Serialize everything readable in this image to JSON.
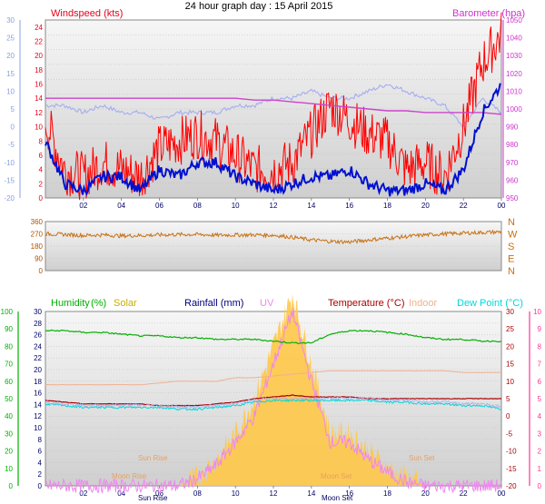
{
  "title": "24 hour graph day : 15 April 2015",
  "colors": {
    "wind_axis": "#e8001a",
    "wind_left_axis": "#8aa0e0",
    "baro_axis": "#cc33cc",
    "avg_wind": "#0010d0",
    "gust": "#ff0000",
    "baro_line": "#cc44cc",
    "baro_trace": "#a8b0f0",
    "wind_dir": "#c87012",
    "compass": "#c87012",
    "humidity": "#00b000",
    "solar": "#c8b000",
    "rainfall": "#000080",
    "uv": "#ee88ee",
    "temperature": "#aa0000",
    "indoor": "#f0b090",
    "dewpoint": "#00d8d8",
    "solar_fill": "#ffc848",
    "panel_bg_top": "#f4f4f4",
    "panel_bg_bottom": "#d0d0d0",
    "sun_label": "#e8a060",
    "moon_label": "#e8a060",
    "left_green_axis": "#00b000",
    "right_pink_axis": "#ff3399"
  },
  "time_labels": [
    "02",
    "04",
    "06",
    "08",
    "10",
    "12",
    "14",
    "16",
    "18",
    "20",
    "22",
    "00"
  ],
  "chart_data": [
    {
      "type": "line",
      "panel": "wind",
      "left_title": "Windspeed (kts)",
      "right_title": "Barometer (hpa)",
      "yaxis_kts": {
        "ticks": [
          0,
          2,
          4,
          6,
          8,
          10,
          12,
          14,
          16,
          18,
          20,
          22,
          24
        ],
        "range": [
          0,
          25
        ]
      },
      "yaxis_left_outer": {
        "ticks": [
          -20,
          -15,
          -10,
          -5,
          0,
          5,
          10,
          15,
          20,
          25,
          30
        ],
        "range": [
          -20,
          30
        ]
      },
      "yaxis_hpa": {
        "ticks": [
          950,
          960,
          970,
          980,
          990,
          1000,
          1010,
          1020,
          1030,
          1040,
          1050
        ],
        "range": [
          950,
          1050
        ]
      },
      "x_hours": [
        0,
        1,
        2,
        3,
        4,
        5,
        6,
        7,
        8,
        9,
        10,
        11,
        12,
        13,
        14,
        15,
        16,
        17,
        18,
        19,
        20,
        21,
        22,
        23,
        24
      ],
      "series": [
        {
          "key": "avg_wind",
          "values": [
            8,
            2,
            1,
            3,
            3,
            1,
            4,
            3,
            5,
            5,
            3,
            2,
            1,
            2,
            3,
            3,
            4,
            2,
            1,
            1,
            2,
            1,
            4,
            12,
            16
          ]
        },
        {
          "key": "gust",
          "values": [
            11,
            4,
            3,
            5,
            4,
            3,
            7,
            8,
            9,
            8,
            6,
            4,
            4,
            5,
            9,
            13,
            11,
            9,
            8,
            4,
            5,
            3,
            10,
            19,
            23
          ]
        },
        {
          "key": "baro_line",
          "values": [
            1006,
            1006,
            1006,
            1006,
            1006,
            1006,
            1006,
            1006,
            1006,
            1006,
            1006,
            1005,
            1005,
            1004,
            1003,
            1002,
            1001,
            1000,
            999,
            999,
            998,
            998,
            998,
            998,
            997
          ]
        },
        {
          "key": "baro_trace",
          "values": [
            13,
            13,
            12,
            13,
            12,
            12,
            11,
            12,
            12,
            12,
            13,
            13,
            14,
            14,
            15,
            14,
            14,
            15,
            16,
            15,
            14,
            13,
            10,
            14,
            12
          ]
        }
      ]
    },
    {
      "type": "line",
      "panel": "wind_direction",
      "yaxis": {
        "ticks": [
          0,
          90,
          180,
          270,
          360
        ],
        "range": [
          0,
          360
        ]
      },
      "compass": [
        "N",
        "W",
        "S",
        "E",
        "N"
      ],
      "x_hours": [
        0,
        1,
        2,
        3,
        4,
        5,
        6,
        7,
        8,
        9,
        10,
        11,
        12,
        13,
        14,
        15,
        16,
        17,
        18,
        19,
        20,
        21,
        22,
        23,
        24
      ],
      "series": [
        {
          "key": "wind_dir",
          "values": [
            270,
            265,
            258,
            262,
            255,
            258,
            262,
            265,
            265,
            260,
            262,
            262,
            260,
            245,
            225,
            215,
            210,
            225,
            238,
            250,
            262,
            270,
            275,
            280,
            285
          ]
        }
      ]
    },
    {
      "type": "line",
      "panel": "temperature",
      "headers": {
        "humidity": "Humidity",
        "humidity_unit": "(%)",
        "solar": "Solar",
        "rainfall": "Rainfall (mm)",
        "uv": "UV",
        "temperature": "Temperature (°C)",
        "indoor": "Indoor",
        "dewpoint": "Dew Point (°C)"
      },
      "yaxis_humidity": {
        "ticks": [
          0,
          10,
          20,
          30,
          40,
          50,
          60,
          70,
          80,
          90,
          100
        ],
        "range": [
          0,
          100
        ]
      },
      "yaxis_rain": {
        "ticks": [
          0,
          2,
          4,
          6,
          8,
          10,
          12,
          14,
          16,
          18,
          20,
          22,
          24,
          26,
          28,
          30
        ],
        "range": [
          0,
          30
        ]
      },
      "yaxis_temp": {
        "ticks": [
          -20,
          -15,
          -10,
          -5,
          0,
          5,
          10,
          15,
          20,
          25,
          30
        ],
        "range": [
          -20,
          30
        ]
      },
      "yaxis_uv": {
        "ticks": [
          0,
          1,
          2,
          3,
          4,
          5,
          6,
          7,
          8,
          9,
          10
        ],
        "range": [
          0,
          10
        ]
      },
      "x_hours": [
        0,
        1,
        2,
        3,
        4,
        5,
        6,
        7,
        8,
        9,
        10,
        11,
        12,
        13,
        14,
        15,
        16,
        17,
        18,
        19,
        20,
        21,
        22,
        23,
        24
      ],
      "series": [
        {
          "key": "humidity",
          "values": [
            89,
            89,
            88,
            88,
            87,
            86,
            86,
            85,
            85,
            84,
            84,
            84,
            83,
            82,
            82,
            87,
            89,
            89,
            88,
            87,
            85,
            84,
            84,
            83,
            83
          ]
        },
        {
          "key": "indoor",
          "values": [
            9,
            9,
            9,
            9,
            9,
            9,
            9.5,
            10,
            10,
            10,
            11,
            11,
            11.5,
            12,
            12.5,
            13,
            13,
            13,
            13,
            13,
            13,
            13,
            12.5,
            12.5,
            12.5
          ]
        },
        {
          "key": "temperature",
          "values": [
            4.5,
            4.0,
            3.5,
            3.5,
            3.5,
            3.5,
            3.0,
            3.0,
            3.0,
            3.5,
            4.0,
            5.0,
            5.5,
            6.0,
            5.5,
            5.5,
            5.5,
            5.0,
            5.0,
            5.0,
            5.0,
            5.0,
            5.0,
            5.0,
            5.0
          ]
        },
        {
          "key": "dewpoint",
          "values": [
            3.5,
            3.0,
            2.5,
            2.5,
            2.5,
            2.5,
            2.5,
            2.0,
            2.0,
            2.5,
            3.0,
            4.0,
            4.5,
            4.5,
            4.5,
            4.5,
            4.5,
            4.5,
            4.0,
            4.0,
            3.5,
            3.5,
            3.0,
            3.0,
            2.0
          ]
        },
        {
          "key": "solar",
          "values": [
            0,
            0,
            0,
            0,
            0,
            0,
            0,
            0,
            0.5,
            1.5,
            3,
            5,
            8,
            11,
            7,
            3,
            3,
            2,
            1,
            0.5,
            0,
            0,
            0,
            0,
            0
          ]
        },
        {
          "key": "uv",
          "values": [
            0,
            0,
            0,
            0,
            0,
            0,
            0,
            0,
            0.4,
            1.2,
            2.5,
            4,
            7,
            10,
            6,
            2.5,
            2.5,
            1.5,
            0.8,
            0.2,
            0,
            0,
            0,
            0,
            0
          ]
        }
      ],
      "annotations": {
        "sun_rise": "Sun Rise",
        "sun_set": "Sun Set",
        "moon_rise": "Moon Rise",
        "moon_set": "Moon Set",
        "x_label_sunrise_axis": "Sun Rise",
        "x_label_moonset_axis": "Moon Set"
      }
    }
  ]
}
